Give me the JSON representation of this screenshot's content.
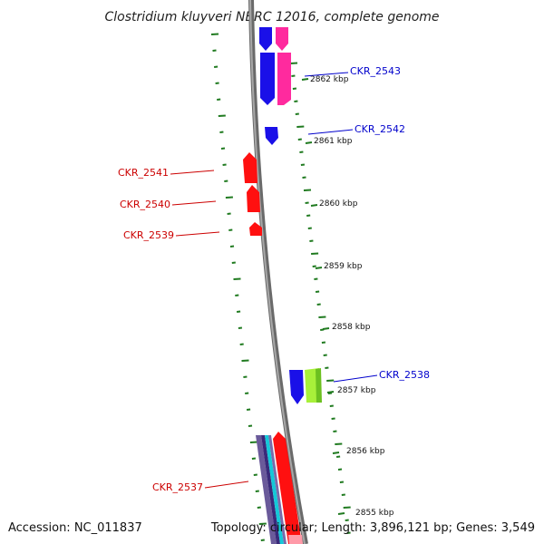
{
  "title": "Clostridium kluyveri NBRC 12016, complete genome",
  "accession": "Accession: NC_011837",
  "summary": "Topology: circular; Length: 3,896,121 bp; Genes: 3,549",
  "colors": {
    "backbone": "#8a8a8a",
    "tick": "#1f7a1f",
    "forward_label": "#0000cc",
    "reverse_label": "#cc0000",
    "blue": "#1a10e8",
    "pink": "#ff2a9e",
    "red": "#ff1010",
    "lime": "#a8f03a",
    "cyan": "#14c8d8",
    "purple": "#6a5a9a"
  },
  "ticks": [
    "2862 kbp",
    "2861 kbp",
    "2860 kbp",
    "2859 kbp",
    "2858 kbp",
    "2857 kbp",
    "2856 kbp",
    "2855 kbp"
  ],
  "genes_forward": [
    "CKR_2543",
    "CKR_2542",
    "CKR_2538"
  ],
  "genes_reverse": [
    "CKR_2541",
    "CKR_2540",
    "CKR_2539",
    "CKR_2537"
  ]
}
